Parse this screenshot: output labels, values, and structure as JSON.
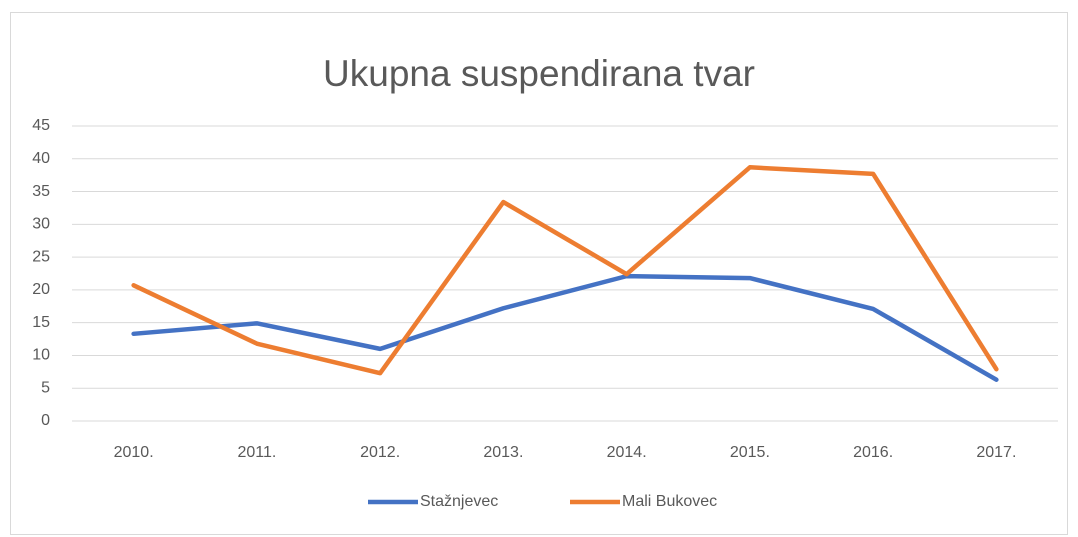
{
  "chart_data": {
    "type": "line",
    "title": "Ukupna suspendirana tvar",
    "categories": [
      "2010.",
      "2011.",
      "2012.",
      "2013.",
      "2014.",
      "2015.",
      "2016.",
      "2017."
    ],
    "series": [
      {
        "name": "Stažnjevec",
        "color": "#4472c4",
        "values": [
          13.3,
          14.9,
          11.0,
          17.2,
          22.1,
          21.8,
          17.1,
          6.3
        ]
      },
      {
        "name": "Mali Bukovec",
        "color": "#ed7d31",
        "values": [
          20.7,
          11.8,
          7.3,
          33.4,
          22.4,
          38.7,
          37.7,
          7.9
        ]
      }
    ],
    "ylim": [
      0,
      45
    ],
    "yticks": [
      0,
      5,
      10,
      15,
      20,
      25,
      30,
      35,
      40,
      45
    ],
    "grid": true,
    "legend": "bottom"
  }
}
